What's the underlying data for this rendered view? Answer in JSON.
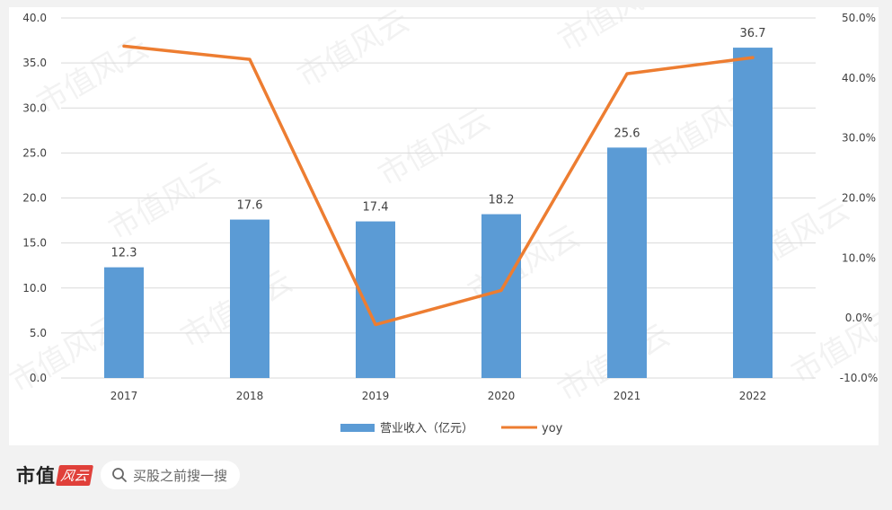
{
  "chart_data": {
    "type": "bar",
    "categories": [
      "2017",
      "2018",
      "2019",
      "2020",
      "2021",
      "2022"
    ],
    "series": [
      {
        "name": "营业收入（亿元）",
        "type": "bar",
        "axis": "left",
        "values": [
          12.3,
          17.6,
          17.4,
          18.2,
          25.6,
          36.7
        ]
      },
      {
        "name": "yoy",
        "type": "line",
        "axis": "right",
        "values": [
          45.3,
          43.1,
          -1.1,
          4.6,
          40.7,
          43.4
        ]
      }
    ],
    "data_labels": [
      "12.3",
      "17.6",
      "17.4",
      "18.2",
      "25.6",
      "36.7"
    ],
    "y_left": {
      "ylim": [
        0,
        40
      ],
      "ticks": [
        "0.0",
        "5.0",
        "10.0",
        "15.0",
        "20.0",
        "25.0",
        "30.0",
        "35.0",
        "40.0"
      ]
    },
    "y_right": {
      "ylim": [
        -10,
        50
      ],
      "ticks": [
        "-10.0%",
        "0.0%",
        "10.0%",
        "20.0%",
        "30.0%",
        "40.0%",
        "50.0%"
      ]
    },
    "grid": true,
    "legend_position": "bottom",
    "colors": {
      "bar": "#5b9bd5",
      "line": "#ed7d31"
    }
  },
  "watermark": "市值风云",
  "footer": {
    "brand": "市值",
    "brand_logo": "风云",
    "search_placeholder": "买股之前搜一搜"
  }
}
